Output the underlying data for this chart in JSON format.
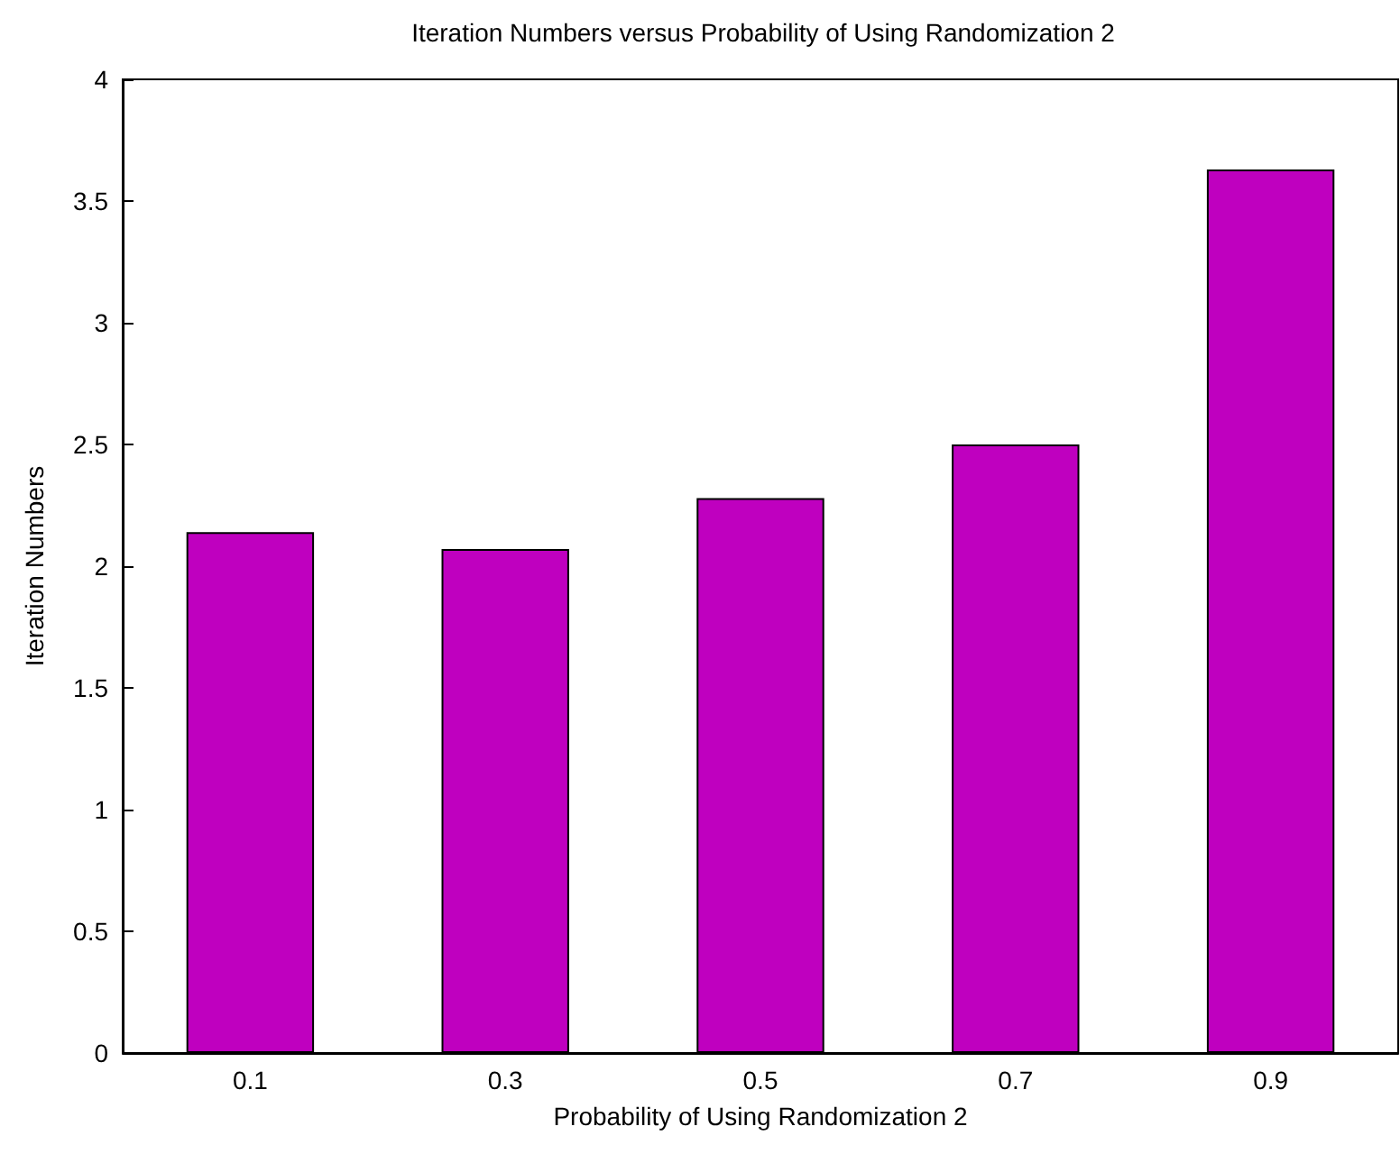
{
  "chart_data": {
    "type": "bar",
    "title": "Iteration Numbers versus Probability of Using Randomization 2",
    "xlabel": "Probability of Using Randomization 2",
    "ylabel": "Iteration Numbers",
    "categories": [
      "0.1",
      "0.3",
      "0.5",
      "0.7",
      "0.9"
    ],
    "values": [
      2.14,
      2.07,
      2.28,
      2.5,
      3.63
    ],
    "color": "#bf00bf",
    "ylim": [
      0,
      4
    ],
    "yticks": [
      0,
      0.5,
      1,
      1.5,
      2,
      2.5,
      3,
      3.5,
      4
    ],
    "grid": false
  }
}
